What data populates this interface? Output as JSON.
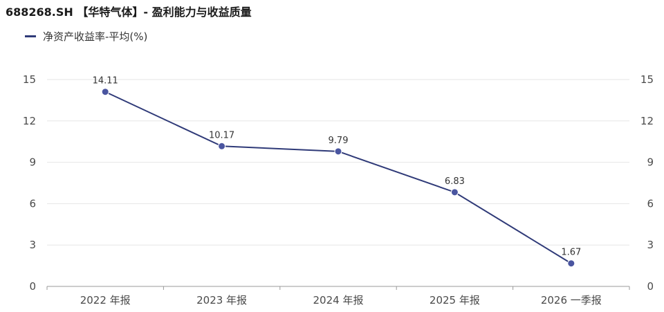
{
  "header": {
    "title": "688268.SH 【华特气体】- 盈利能力与收益质量"
  },
  "chart_data": {
    "type": "line",
    "title": "688268.SH 【华特气体】- 盈利能力与收益质量",
    "categories": [
      "2022 年报",
      "2023 年报",
      "2024 年报",
      "2025 年报",
      "2026 一季报"
    ],
    "series": [
      {
        "name": "净资产收益率-平均(%)",
        "values": [
          14.11,
          10.17,
          9.79,
          6.83,
          1.67
        ],
        "color": "#2f3a78"
      }
    ],
    "data_labels": [
      "14.11",
      "10.17",
      "9.79",
      "6.83",
      "1.67"
    ],
    "yticks": [
      "0",
      "3",
      "6",
      "9",
      "12",
      "15"
    ],
    "ylim": [
      0,
      15
    ],
    "xlabel": "",
    "ylabel": "",
    "grid": true,
    "legend_position": "top-left",
    "colors": {
      "line": "#2f3a78",
      "point": "#4a55a0",
      "grid": "#e6e6e6",
      "axis": "#999999"
    }
  }
}
